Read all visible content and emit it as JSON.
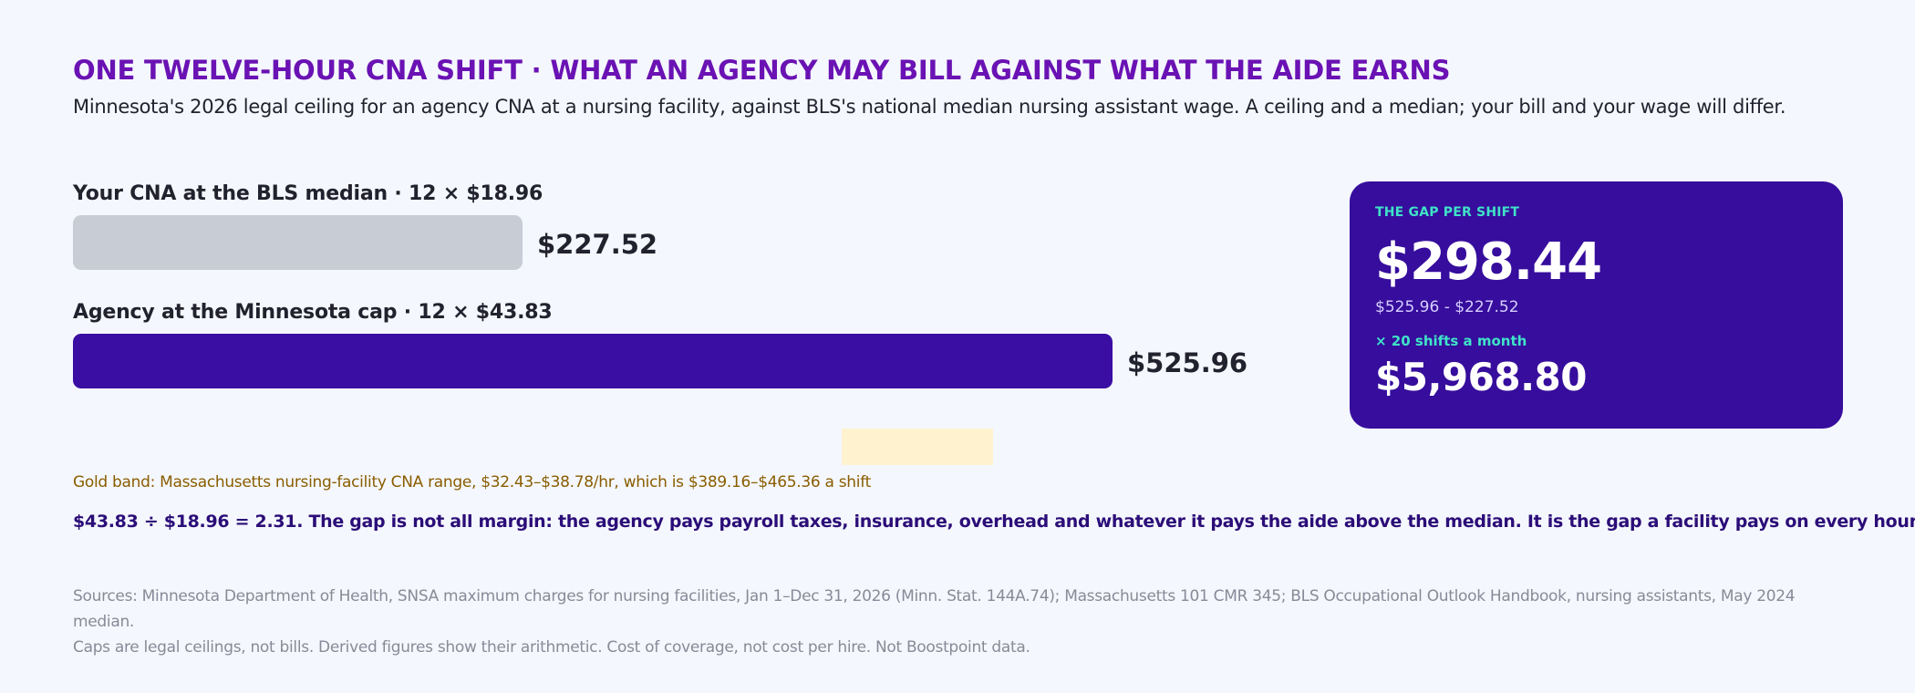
{
  "title": "ONE TWELVE-HOUR CNA SHIFT · WHAT AN AGENCY MAY BILL AGAINST WHAT THE AIDE EARNS",
  "subtitle": "Minnesota's 2026 legal ceiling for an agency CNA at a nursing facility, against BLS's national median nursing assistant wage. A ceiling and a median; your bill and your wage will differ.",
  "chart_data": {
    "type": "bar",
    "orientation": "horizontal",
    "categories": [
      "Your CNA at the BLS median · 12 × $18.96",
      "Agency at the Minnesota cap · 12 × $43.83"
    ],
    "values": [
      227.52,
      525.96
    ],
    "value_labels": [
      "$227.52",
      "$525.96"
    ],
    "colors": [
      "#c8ccd5",
      "#3a0da3"
    ],
    "xlim": [
      0,
      525.96
    ],
    "reference_band": {
      "from": 389.16,
      "to": 465.36,
      "color": "#fff3cf"
    }
  },
  "gap_card": {
    "kicker": "THE GAP PER SHIFT",
    "value": "$298.44",
    "formula": "$525.96 - $227.52",
    "multiplier": "× 20 shifts a month",
    "monthly": "$5,968.80",
    "background": "#360d9c",
    "accent": "#3fe3c8"
  },
  "notes": {
    "band": "Gold band: Massachusetts nursing-facility CNA range, $32.43–$38.78/hr, which is $389.16–$465.36 a shift",
    "math": "$43.83 ÷ $18.96 = 2.31. The gap is not all margin: the agency pays payroll taxes, insurance, overhead and whatever it pays the aide above the median. It is the gap a facility pays on every hour.",
    "sources_line1": "Sources: Minnesota Department of Health, SNSA maximum charges for nursing facilities, Jan 1–Dec 31, 2026 (Minn. Stat. 144A.74); Massachusetts 101 CMR 345; BLS Occupational Outlook Handbook, nursing assistants, May 2024 median.",
    "sources_line2": "Caps are legal ceilings, not bills. Derived figures show their arithmetic. Cost of coverage, not cost per hire. Not Boostpoint data."
  }
}
